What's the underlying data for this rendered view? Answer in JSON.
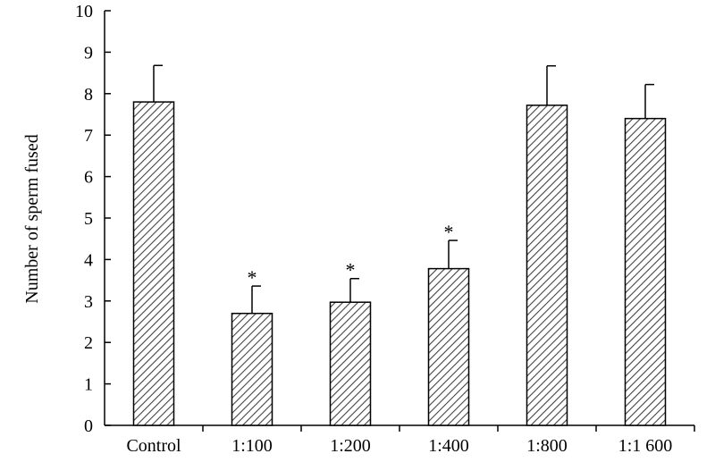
{
  "chart_data": {
    "type": "bar",
    "ylabel": "Number of sperm fused",
    "xlabel": "",
    "ylim": [
      0,
      10
    ],
    "yticks": [
      0,
      1,
      2,
      3,
      4,
      5,
      6,
      7,
      8,
      9,
      10
    ],
    "categories": [
      "Control",
      "1:100",
      "1:200",
      "1:400",
      "1:800",
      "1:1 600"
    ],
    "values": [
      7.8,
      2.7,
      2.97,
      3.78,
      7.72,
      7.4
    ],
    "error_upper": [
      0.88,
      0.66,
      0.57,
      0.68,
      0.95,
      0.82
    ],
    "annotations": [
      "",
      "*",
      "*",
      "*",
      "",
      ""
    ],
    "grid": false,
    "bar_fill": "diagonal-hatch",
    "colors": {
      "hatch": "#444444",
      "axis": "#000000",
      "background": "#ffffff"
    }
  }
}
